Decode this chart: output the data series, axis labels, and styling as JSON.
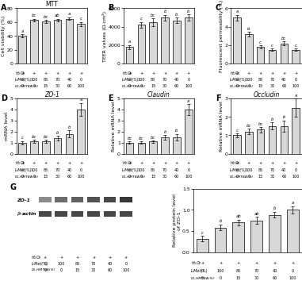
{
  "panel_A": {
    "title": "MTT",
    "ylabel": "Cell viability (%)",
    "bars": [
      40,
      63,
      61,
      63,
      65,
      57
    ],
    "errors": [
      2.5,
      2.0,
      2.0,
      2.0,
      2.0,
      3.0
    ],
    "ylim": [
      0,
      80
    ],
    "yticks": [
      0,
      20,
      40,
      60,
      80
    ],
    "labels_top": [
      "a",
      "bc",
      "bc",
      "ab",
      "a",
      "c"
    ],
    "h2o2": [
      "+",
      "+",
      "+",
      "+",
      "+",
      "+"
    ],
    "lmet": [
      "0",
      "100",
      "85",
      "70",
      "40",
      "0"
    ],
    "dlhmtba": [
      "0",
      "0",
      "15",
      "30",
      "60",
      "100"
    ]
  },
  "panel_B": {
    "title": "",
    "ylabel": "TEER values (Ω·cm²)",
    "bars": [
      1800,
      4200,
      4500,
      5000,
      4700,
      5000
    ],
    "errors": [
      200,
      300,
      400,
      300,
      300,
      350
    ],
    "ylim": [
      0,
      6000
    ],
    "yticks": [
      0,
      2000,
      4000,
      6000
    ],
    "labels_top": [
      "a",
      "c",
      "bc",
      "b",
      "b",
      "b"
    ],
    "h2o2": [
      "+",
      "+",
      "+",
      "+",
      "+",
      "+"
    ],
    "lmet": [
      "0",
      "100",
      "85",
      "70",
      "40",
      "0"
    ],
    "dlhmtba": [
      "0",
      "0",
      "15",
      "30",
      "60",
      "100"
    ]
  },
  "panel_C": {
    "title": "",
    "ylabel": "Fluorescent permeability (%)",
    "bars": [
      5.0,
      3.2,
      1.8,
      1.5,
      2.2,
      1.5
    ],
    "errors": [
      0.3,
      0.25,
      0.15,
      0.15,
      0.2,
      0.15
    ],
    "ylim": [
      0,
      6
    ],
    "yticks": [
      0,
      2,
      4,
      6
    ],
    "labels_top": [
      "a",
      "b",
      "c",
      "c",
      "bc",
      "c"
    ],
    "h2o2": [
      "+",
      "+",
      "+",
      "+",
      "+",
      "+"
    ],
    "lmet": [
      "0",
      "100",
      "85",
      "70",
      "40",
      "0"
    ],
    "dlhmtba": [
      "0",
      "0",
      "15",
      "30",
      "60",
      "100"
    ]
  },
  "panel_D": {
    "title": "ZO-1",
    "ylabel": "mRNA level",
    "bars": [
      1.0,
      1.1,
      1.1,
      1.4,
      1.8,
      4.0
    ],
    "errors": [
      0.15,
      0.15,
      0.15,
      0.2,
      0.3,
      0.6
    ],
    "ylim": [
      0,
      5
    ],
    "yticks": [
      0,
      1,
      2,
      3,
      4,
      5
    ],
    "labels_top": [
      "c",
      "bc",
      "bc",
      "b",
      "b",
      "a"
    ],
    "h2o2": [
      "+",
      "+",
      "+",
      "+",
      "+",
      "+"
    ],
    "lmet": [
      "0",
      "100",
      "85",
      "70",
      "40",
      "0"
    ],
    "dlhmtba": [
      "0",
      "0",
      "15",
      "30",
      "60",
      "100"
    ]
  },
  "panel_E": {
    "title": "Claudin",
    "ylabel": "Relative mRNA level",
    "bars": [
      1.0,
      1.0,
      1.1,
      1.5,
      1.5,
      4.0
    ],
    "errors": [
      0.1,
      0.1,
      0.1,
      0.2,
      0.3,
      0.5
    ],
    "ylim": [
      0,
      5
    ],
    "yticks": [
      0,
      1,
      2,
      3,
      4,
      5
    ],
    "labels_top": [
      "bc",
      "bc",
      "bc",
      "b",
      "b",
      "a"
    ],
    "h2o2": [
      "+",
      "+",
      "+",
      "+",
      "+",
      "+"
    ],
    "lmet": [
      "0",
      "100",
      "85",
      "70",
      "40",
      "0"
    ],
    "dlhmtba": [
      "0",
      "0",
      "15",
      "30",
      "60",
      "100"
    ]
  },
  "panel_F": {
    "title": "Occludin",
    "ylabel": "Relative mRNA level",
    "bars": [
      1.0,
      1.2,
      1.3,
      1.5,
      1.5,
      2.5
    ],
    "errors": [
      0.1,
      0.15,
      0.15,
      0.2,
      0.3,
      0.5
    ],
    "ylim": [
      0,
      3
    ],
    "yticks": [
      0,
      1,
      2,
      3
    ],
    "labels_top": [
      "c",
      "bc",
      "bc",
      "b",
      "b",
      "a"
    ],
    "h2o2": [
      "+",
      "+",
      "+",
      "+",
      "+",
      "+"
    ],
    "lmet": [
      "0",
      "100",
      "85",
      "70",
      "40",
      "0"
    ],
    "dlhmtba": [
      "0",
      "0",
      "15",
      "30",
      "60",
      "100"
    ]
  },
  "panel_G_bar": {
    "ylabel": "Relative protein level\nof ZO-1",
    "bars": [
      0.32,
      0.58,
      0.7,
      0.75,
      0.88,
      1.0
    ],
    "errors": [
      0.06,
      0.07,
      0.07,
      0.08,
      0.07,
      0.08
    ],
    "ylim": [
      0,
      1.5
    ],
    "yticks": [
      0.0,
      0.5,
      1.0,
      1.5
    ],
    "labels_top": [
      "c",
      "b",
      "ab",
      "ab",
      "b",
      "a"
    ],
    "h2o2": [
      "+",
      "+",
      "+",
      "+",
      "+",
      "+"
    ],
    "lmet": [
      "0",
      "100",
      "85",
      "70",
      "40",
      "0"
    ],
    "dlhmtba": [
      "0",
      "0",
      "15",
      "30",
      "60",
      "100"
    ]
  },
  "wb_zo1_grays": [
    0.55,
    0.42,
    0.38,
    0.32,
    0.28,
    0.22
  ],
  "wb_bactin_grays": [
    0.28,
    0.28,
    0.28,
    0.28,
    0.28,
    0.28
  ],
  "bar_color": "#d8d8d8",
  "edge_color": "#000000",
  "title_fontsize": 5.5,
  "axis_fontsize": 4.5,
  "tick_fontsize": 4.5,
  "sig_fontsize": 3.8,
  "xlabel_fontsize": 3.5,
  "panel_label_fontsize": 7
}
